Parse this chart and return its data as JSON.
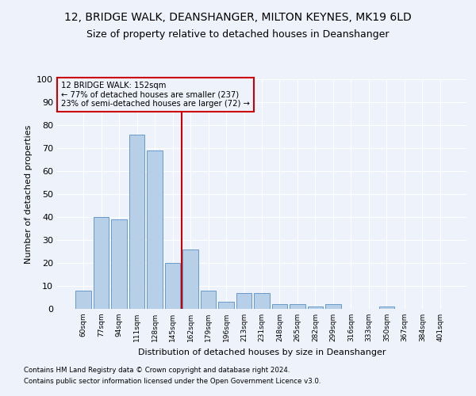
{
  "title1": "12, BRIDGE WALK, DEANSHANGER, MILTON KEYNES, MK19 6LD",
  "title2": "Size of property relative to detached houses in Deanshanger",
  "xlabel": "Distribution of detached houses by size in Deanshanger",
  "ylabel": "Number of detached properties",
  "categories": [
    "60sqm",
    "77sqm",
    "94sqm",
    "111sqm",
    "128sqm",
    "145sqm",
    "162sqm",
    "179sqm",
    "196sqm",
    "213sqm",
    "231sqm",
    "248sqm",
    "265sqm",
    "282sqm",
    "299sqm",
    "316sqm",
    "333sqm",
    "350sqm",
    "367sqm",
    "384sqm",
    "401sqm"
  ],
  "values": [
    8,
    40,
    39,
    76,
    69,
    20,
    26,
    8,
    3,
    7,
    7,
    2,
    2,
    1,
    2,
    0,
    0,
    1,
    0,
    0,
    0
  ],
  "bar_color": "#b8cfe8",
  "bar_edge_color": "#6699cc",
  "vline_color": "#cc0000",
  "annotation_box_color": "#cc0000",
  "property_label": "12 BRIDGE WALK: 152sqm",
  "annotation_line1": "← 77% of detached houses are smaller (237)",
  "annotation_line2": "23% of semi-detached houses are larger (72) →",
  "ylim": [
    0,
    100
  ],
  "yticks": [
    0,
    10,
    20,
    30,
    40,
    50,
    60,
    70,
    80,
    90,
    100
  ],
  "bg_color": "#eef2fb",
  "grid_color": "#ffffff",
  "title1_fontsize": 10,
  "title2_fontsize": 9,
  "footer1": "Contains HM Land Registry data © Crown copyright and database right 2024.",
  "footer2": "Contains public sector information licensed under the Open Government Licence v3.0."
}
